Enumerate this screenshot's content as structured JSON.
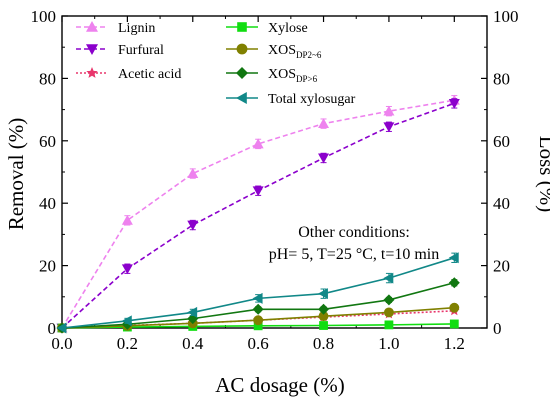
{
  "chart_data": {
    "type": "line",
    "xlabel": "AC dosage (%)",
    "ylabel_left": "Removal (%)",
    "ylabel_right": "Loss (%)",
    "xlim": [
      0.0,
      1.3
    ],
    "ylim": [
      0,
      100
    ],
    "x_ticks": [
      "0.0",
      "0.2",
      "0.4",
      "0.6",
      "0.8",
      "1.0",
      "1.2"
    ],
    "y_ticks": [
      "0",
      "20",
      "40",
      "60",
      "80",
      "100"
    ],
    "x": [
      0.0,
      0.2,
      0.4,
      0.6,
      0.8,
      1.0,
      1.2
    ],
    "series": [
      {
        "name": "Lignin",
        "axis": "left",
        "color": "#ee82ee",
        "line": "dashed",
        "marker": "triangle-up",
        "values": [
          0,
          34.5,
          49.5,
          59,
          65.5,
          69.5,
          73
        ],
        "errors": [
          0.5,
          1.5,
          1.5,
          1.5,
          1.5,
          1.5,
          1.5
        ]
      },
      {
        "name": "Furfural",
        "axis": "left",
        "color": "#8b00cc",
        "line": "dashed",
        "marker": "triangle-down",
        "values": [
          0,
          19,
          33,
          44,
          54.5,
          64.5,
          72
        ],
        "errors": [
          0.5,
          1.5,
          1.5,
          1.5,
          1.5,
          1.5,
          1.5
        ]
      },
      {
        "name": "Acetic acid",
        "axis": "left",
        "color": "#e8366c",
        "line": "dotted",
        "marker": "star",
        "values": [
          0,
          0.8,
          1.5,
          2.5,
          3.5,
          4.5,
          5.5
        ],
        "errors": [
          0.3,
          0.3,
          0.3,
          0.3,
          0.3,
          0.3,
          0.3
        ]
      },
      {
        "name": "Xylose",
        "axis": "right",
        "color": "#11dd11",
        "line": "solid",
        "marker": "square",
        "values": [
          0,
          0.3,
          0.5,
          0.7,
          0.8,
          1.0,
          1.3
        ],
        "errors": [
          0.2,
          0.2,
          0.2,
          0.2,
          0.2,
          0.2,
          0.2
        ]
      },
      {
        "name": "XOS",
        "sub": "DP2~6",
        "axis": "right",
        "color": "#808000",
        "line": "solid",
        "marker": "circle",
        "values": [
          0,
          0.7,
          1.5,
          2.5,
          3.8,
          5,
          6.5
        ],
        "errors": [
          0.3,
          0.3,
          0.3,
          0.3,
          0.3,
          0.3,
          0.5
        ]
      },
      {
        "name": "XOS",
        "sub": "DP>6",
        "axis": "right",
        "color": "#117711",
        "line": "solid",
        "marker": "diamond",
        "values": [
          0,
          1.2,
          3,
          6,
          6,
          9,
          14.5
        ],
        "errors": [
          0.3,
          0.5,
          0.5,
          0.8,
          0.8,
          0.8,
          1.0
        ]
      },
      {
        "name": "Total xylosugar",
        "axis": "right",
        "color": "#118888",
        "line": "solid",
        "marker": "triangle-left",
        "values": [
          0,
          2.3,
          5,
          9.5,
          11,
          16,
          22.5
        ],
        "errors": [
          0.3,
          0.8,
          1,
          1.2,
          1.5,
          1.5,
          1.5
        ]
      }
    ],
    "annotation": [
      "Other conditions:",
      "pH= 5, T=25 °C, t=10 min"
    ]
  }
}
